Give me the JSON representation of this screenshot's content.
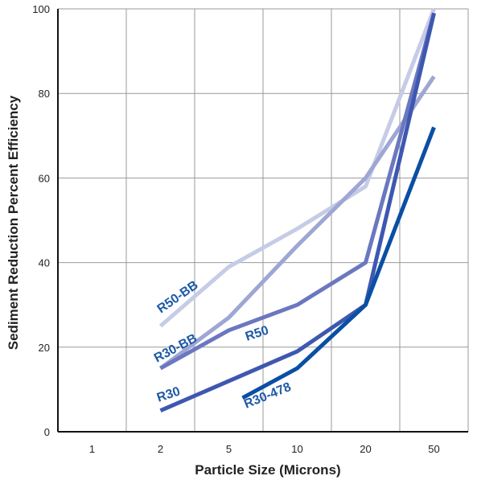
{
  "chart_data": {
    "type": "line",
    "categories": [
      "1",
      "2",
      "5",
      "10",
      "20",
      "50"
    ],
    "xlabel": "Particle Size (Microns)",
    "ylabel": "Sediment Reduction Percent Efficiency",
    "ylim": [
      0,
      100
    ],
    "yticks": [
      "0",
      "20",
      "40",
      "60",
      "80",
      "100"
    ],
    "grid": true,
    "series": [
      {
        "name": "R50-BB",
        "color": "#c6cbe6",
        "points": [
          [
            1,
            25
          ],
          [
            2,
            39
          ],
          [
            3,
            48
          ],
          [
            4,
            58
          ],
          [
            5,
            100
          ]
        ]
      },
      {
        "name": "R30-BB",
        "color": "#9ea7d3",
        "points": [
          [
            1,
            15
          ],
          [
            2,
            27
          ],
          [
            3,
            44
          ],
          [
            4,
            60
          ],
          [
            5,
            84
          ]
        ]
      },
      {
        "name": "R50",
        "color": "#6b78bf",
        "points": [
          [
            1,
            15
          ],
          [
            2,
            24
          ],
          [
            3,
            30
          ],
          [
            4,
            40
          ],
          [
            5,
            99
          ]
        ]
      },
      {
        "name": "R30",
        "color": "#3e58b0",
        "points": [
          [
            1,
            5
          ],
          [
            3,
            19
          ],
          [
            4,
            30
          ],
          [
            5,
            99
          ]
        ]
      },
      {
        "name": "R30-478",
        "color": "#0a4fa3",
        "points": [
          [
            2.2,
            8
          ],
          [
            3,
            15
          ],
          [
            4,
            30
          ],
          [
            5,
            72
          ]
        ]
      }
    ]
  }
}
